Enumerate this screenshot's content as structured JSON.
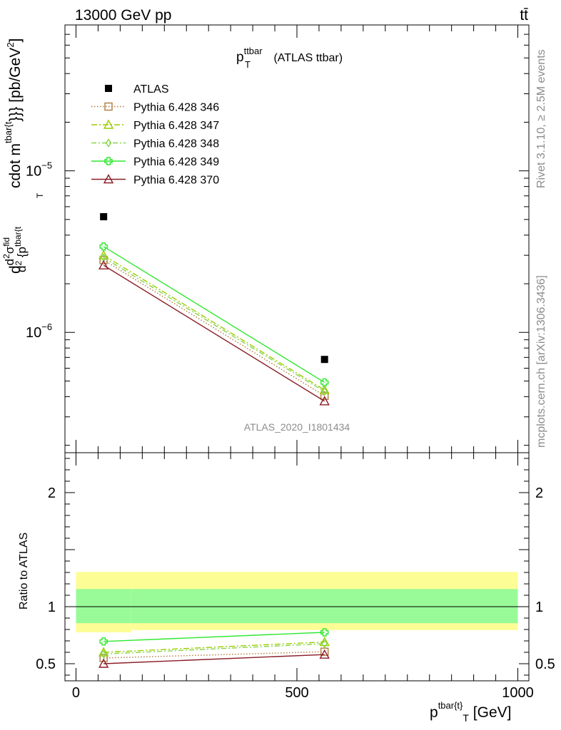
{
  "header": {
    "energy": "13000 GeV pp",
    "process": "tt̄"
  },
  "side_labels": {
    "rivet": "Rivet 3.1.10, ≥ 2.5M events",
    "mcplots": "mcplots.cern.ch [arXiv:1306.3436]"
  },
  "watermark": "ATLAS_2020_I1801434",
  "plot_title": {
    "main": "p",
    "sup": "ttbar",
    "sub": "T",
    "rest": " (ATLAS ttbar)"
  },
  "y_axis_main": {
    "p1": "d",
    "p2": "d",
    "p2sup": "2",
    "p3": "σ",
    "p3sup": "fid",
    "p4": "d",
    "p4sup": "2",
    "p5": " {p",
    "p5sup": "tbar{t",
    "p6": "  cdot m",
    "p6sup": "tbar{t",
    "p7": "}}} [pb/GeV",
    "p7sup": "2",
    "p8": "]",
    "sub_T": "T"
  },
  "y_axis_ratio": "Ratio to ATLAS",
  "x_axis": {
    "main": "p",
    "sup": "tbar{t",
    "sup2": "}",
    "sub": "T",
    "rest": " [GeV]"
  },
  "ticks": {
    "main_y": [
      {
        "value": 1e-05,
        "base": "10",
        "exp": "−5"
      },
      {
        "value": 1e-06,
        "base": "10",
        "exp": "−6"
      }
    ],
    "ratio_y": [
      {
        "value": 2,
        "label": "2"
      },
      {
        "value": 1,
        "label": "1"
      },
      {
        "value": 0.5,
        "label": "0.5"
      }
    ],
    "x": [
      {
        "value": 0,
        "label": "0"
      },
      {
        "value": 500,
        "label": "500"
      },
      {
        "value": 1000,
        "label": "1000"
      }
    ]
  },
  "chart_data": {
    "type": "line",
    "x_scale": "linear",
    "y_scale_main": "log",
    "xlim": [
      -25,
      1025
    ],
    "ylim_main": [
      1.8e-07,
      8e-05
    ],
    "ylim_ratio": [
      0.35,
      2.35
    ],
    "legend_position": "top-left",
    "x": [
      62.5,
      562.5
    ],
    "data": {
      "name": "ATLAS",
      "color": "#000000",
      "values": [
        5.2e-06,
        6.8e-07
      ],
      "band_edges": [
        0,
        125,
        1000
      ],
      "band_inner": [
        [
          0.855,
          1.155
        ],
        [
          0.855,
          1.155
        ]
      ],
      "band_outer": [
        [
          0.775,
          1.305
        ],
        [
          0.795,
          1.305
        ]
      ]
    },
    "series": [
      {
        "name": "Pythia 6.428 346",
        "color": "#b07b3c",
        "marker": "square-open",
        "dash": "1.5,2.5",
        "values": [
          2.8e-06,
          4.05e-07
        ],
        "ratio": [
          0.55,
          0.605
        ]
      },
      {
        "name": "Pythia 6.428 347",
        "color": "#9acd00",
        "marker": "triangle-open",
        "dash": "8,3,2,3",
        "values": [
          3e-06,
          4.4e-07
        ],
        "ratio": [
          0.6,
          0.69
        ]
      },
      {
        "name": "Pythia 6.428 348",
        "color": "#88d44a",
        "marker": "diamond-open",
        "dash": "7,3,2,3",
        "values": [
          2.9e-06,
          4.3e-07
        ],
        "ratio": [
          0.585,
          0.675
        ]
      },
      {
        "name": "Pythia 6.428 349",
        "color": "#2ee82e",
        "marker": "cross-open",
        "dash": "",
        "values": [
          3.4e-06,
          4.9e-07
        ],
        "ratio": [
          0.695,
          0.775
        ]
      },
      {
        "name": "Pythia 6.428 370",
        "color": "#8b1c26",
        "marker": "triangle-open",
        "dash": "",
        "values": [
          2.6e-06,
          3.75e-07
        ],
        "ratio": [
          0.5,
          0.58
        ]
      }
    ]
  }
}
